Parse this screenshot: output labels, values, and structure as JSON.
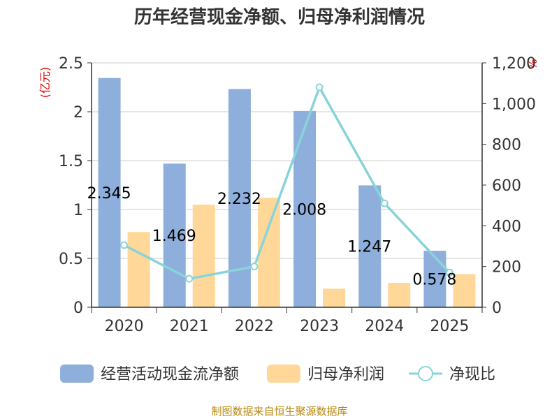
{
  "chart_data": {
    "type": "bar",
    "title": "历年经营现金净额、归母净利润情况",
    "categories": [
      "2020",
      "2021",
      "2022",
      "2023",
      "2024",
      "2025"
    ],
    "series": [
      {
        "name": "经营活动现金流净额",
        "type": "bar",
        "axis": "left",
        "color": "#8eaedb",
        "values": [
          2.345,
          1.469,
          2.232,
          2.008,
          1.247,
          0.578
        ]
      },
      {
        "name": "归母净利润",
        "type": "bar",
        "axis": "left",
        "color": "#ffd899",
        "values": [
          0.77,
          1.05,
          1.12,
          0.19,
          0.25,
          0.34
        ]
      },
      {
        "name": "净现比",
        "type": "line",
        "axis": "right",
        "color": "#88d4d8",
        "values": [
          305,
          140,
          200,
          1080,
          510,
          170
        ]
      }
    ],
    "data_labels": [
      "2.345",
      "1.469",
      "2.232",
      "2.008",
      "1.247",
      "0.578"
    ],
    "left_axis": {
      "unit": "(亿元)",
      "ylim": [
        0,
        2.5
      ],
      "ticks": [
        "0",
        "0.5",
        "1",
        "1.5",
        "2",
        "2.5"
      ]
    },
    "right_axis": {
      "unit": "%",
      "ylim": [
        0,
        1200
      ],
      "ticks": [
        "0",
        "200",
        "400",
        "600",
        "800",
        "1,000",
        "1,200"
      ]
    },
    "grid": true,
    "legend_position": "bottom"
  },
  "source": "制图数据来自恒生聚源数据库"
}
